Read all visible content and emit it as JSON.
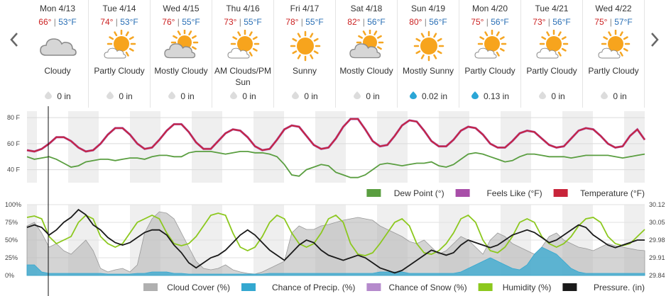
{
  "days": [
    {
      "date": "Mon 4/13",
      "high": "66°",
      "low": "53°F",
      "condition": "Cloudy",
      "precip": "0 in",
      "icon": "cloud-icon",
      "drop": "gray"
    },
    {
      "date": "Tue 4/14",
      "high": "74°",
      "low": "53°F",
      "condition": "Partly Cloudy",
      "precip": "0 in",
      "icon": "partly-cloudy-icon",
      "drop": "gray"
    },
    {
      "date": "Wed 4/15",
      "high": "76°",
      "low": "55°F",
      "condition": "Mostly Cloudy",
      "precip": "0 in",
      "icon": "mostly-cloudy-icon",
      "drop": "gray"
    },
    {
      "date": "Thu 4/16",
      "high": "73°",
      "low": "55°F",
      "condition": "AM Clouds/PM Sun",
      "precip": "0 in",
      "icon": "partly-cloudy-icon",
      "drop": "gray"
    },
    {
      "date": "Fri 4/17",
      "high": "78°",
      "low": "55°F",
      "condition": "Sunny",
      "precip": "0 in",
      "icon": "sun-icon",
      "drop": "gray"
    },
    {
      "date": "Sat 4/18",
      "high": "82°",
      "low": "56°F",
      "condition": "Mostly Cloudy",
      "precip": "0 in",
      "icon": "mostly-cloudy-icon",
      "drop": "gray"
    },
    {
      "date": "Sun 4/19",
      "high": "80°",
      "low": "56°F",
      "condition": "Mostly Sunny",
      "precip": "0.02 in",
      "icon": "sun-icon",
      "drop": "blue"
    },
    {
      "date": "Mon 4/20",
      "high": "75°",
      "low": "56°F",
      "condition": "Partly Cloudy",
      "precip": "0.13 in",
      "icon": "partly-cloudy-icon",
      "drop": "blue"
    },
    {
      "date": "Tue 4/21",
      "high": "73°",
      "low": "56°F",
      "condition": "Partly Cloudy",
      "precip": "0 in",
      "icon": "partly-cloudy-icon",
      "drop": "gray"
    },
    {
      "date": "Wed 4/22",
      "high": "75°",
      "low": "57°F",
      "condition": "Partly Cloudy",
      "precip": "0 in",
      "icon": "partly-cloudy-icon",
      "drop": "gray"
    }
  ],
  "colors": {
    "temperature": "#c8243a",
    "feels_like": "#a84ea8",
    "dew_point": "#5a9e40",
    "cloud_cover": "#b0b0b0",
    "precip_chance": "#34a8d0",
    "snow_chance": "#b58acc",
    "humidity": "#8cc81e",
    "pressure": "#1a1a1a",
    "hi_temp": "#cc2222",
    "lo_temp": "#2a6fb5"
  },
  "chart_data": [
    {
      "type": "line",
      "y_ticks": [
        "80 F",
        "60 F",
        "40 F"
      ],
      "ylim": [
        30,
        85
      ],
      "legend_position": "bottom-right",
      "series": [
        {
          "name": "Dew Point (°)",
          "values": [
            50,
            48,
            49,
            50,
            48,
            45,
            42,
            43,
            46,
            47,
            48,
            48,
            47,
            48,
            49,
            49,
            48,
            50,
            51,
            51,
            50,
            50,
            53,
            54,
            54,
            54,
            53,
            52,
            53,
            54,
            54,
            53,
            53,
            52,
            50,
            44,
            36,
            35,
            40,
            42,
            44,
            43,
            38,
            36,
            34,
            34,
            36,
            40,
            44,
            45,
            44,
            43,
            44,
            45,
            45,
            46,
            43,
            42,
            44,
            48,
            52,
            53,
            52,
            50,
            48,
            46,
            47,
            50,
            52,
            52,
            51,
            50,
            50,
            50,
            49,
            50,
            51,
            51,
            51,
            51,
            50,
            49,
            50,
            51,
            52
          ]
        },
        {
          "name": "Feels Like (°F)",
          "values": [
            55,
            54,
            56,
            60,
            65,
            65,
            62,
            57,
            54,
            55,
            60,
            67,
            72,
            72,
            67,
            60,
            56,
            57,
            63,
            70,
            75,
            75,
            69,
            61,
            56,
            56,
            62,
            68,
            71,
            70,
            65,
            58,
            55,
            56,
            63,
            71,
            74,
            73,
            66,
            59,
            56,
            57,
            64,
            73,
            79,
            79,
            71,
            62,
            58,
            59,
            66,
            74,
            78,
            77,
            70,
            62,
            58,
            58,
            63,
            70,
            73,
            72,
            67,
            60,
            57,
            57,
            62,
            68,
            70,
            69,
            64,
            59,
            57,
            58,
            64,
            70,
            72,
            71,
            66,
            60,
            57,
            58,
            66,
            71,
            63
          ]
        },
        {
          "name": "Temperature (°F)",
          "values": [
            55,
            54,
            56,
            60,
            65,
            65,
            62,
            57,
            54,
            55,
            60,
            67,
            72,
            72,
            67,
            60,
            56,
            57,
            63,
            70,
            75,
            75,
            69,
            61,
            56,
            56,
            62,
            68,
            71,
            70,
            65,
            58,
            55,
            56,
            63,
            71,
            74,
            73,
            66,
            59,
            56,
            57,
            64,
            73,
            79,
            79,
            71,
            62,
            58,
            59,
            66,
            74,
            78,
            77,
            70,
            62,
            58,
            58,
            63,
            70,
            73,
            72,
            67,
            60,
            57,
            57,
            62,
            68,
            70,
            69,
            64,
            59,
            57,
            58,
            64,
            70,
            72,
            71,
            66,
            60,
            57,
            58,
            66,
            71,
            63
          ]
        }
      ]
    },
    {
      "type": "area",
      "y_ticks_left": [
        "100%",
        "75%",
        "50%",
        "25%",
        "0%"
      ],
      "y_ticks_right": [
        "30.12",
        "30.05",
        "29.98",
        "29.91",
        "29.84"
      ],
      "ylim": [
        0,
        100
      ],
      "ylim_right": [
        29.84,
        30.12
      ],
      "legend_position": "bottom-right",
      "series": [
        {
          "name": "Cloud Cover (%)",
          "values": [
            70,
            75,
            60,
            40,
            45,
            35,
            30,
            40,
            50,
            35,
            10,
            5,
            8,
            10,
            5,
            15,
            60,
            80,
            90,
            88,
            80,
            60,
            40,
            20,
            10,
            8,
            10,
            15,
            8,
            5,
            3,
            2,
            5,
            10,
            15,
            20,
            60,
            70,
            65,
            65,
            70,
            72,
            75,
            78,
            80,
            82,
            80,
            78,
            70,
            65,
            60,
            55,
            48,
            45,
            50,
            40,
            30,
            35,
            45,
            55,
            50,
            40,
            30,
            50,
            60,
            55,
            45,
            40,
            35,
            30,
            40,
            55,
            60,
            50,
            45,
            40,
            38,
            35,
            40,
            45,
            42,
            40,
            38,
            36,
            35
          ]
        },
        {
          "name": "Chance of Precip. (%)",
          "values": [
            15,
            15,
            5,
            3,
            3,
            3,
            3,
            3,
            3,
            3,
            3,
            2,
            2,
            2,
            2,
            3,
            3,
            5,
            5,
            5,
            3,
            3,
            2,
            2,
            2,
            2,
            2,
            2,
            2,
            2,
            2,
            2,
            2,
            3,
            3,
            3,
            3,
            3,
            3,
            3,
            3,
            3,
            3,
            3,
            3,
            3,
            3,
            3,
            5,
            5,
            5,
            5,
            3,
            3,
            3,
            3,
            3,
            3,
            3,
            5,
            10,
            15,
            20,
            25,
            20,
            15,
            10,
            8,
            15,
            30,
            40,
            35,
            30,
            20,
            10,
            5,
            3,
            3,
            3,
            3,
            3,
            3,
            3,
            3,
            3
          ]
        },
        {
          "name": "Chance of Snow (%)",
          "values": []
        },
        {
          "name": "Humidity (%)",
          "values": [
            82,
            84,
            80,
            55,
            45,
            50,
            55,
            75,
            85,
            80,
            55,
            45,
            40,
            45,
            60,
            75,
            80,
            85,
            80,
            60,
            45,
            42,
            45,
            55,
            70,
            85,
            88,
            85,
            60,
            40,
            35,
            40,
            55,
            75,
            85,
            80,
            60,
            45,
            40,
            45,
            60,
            80,
            85,
            75,
            45,
            30,
            28,
            32,
            45,
            60,
            75,
            80,
            70,
            45,
            32,
            30,
            35,
            45,
            60,
            80,
            85,
            75,
            50,
            35,
            32,
            40,
            55,
            75,
            80,
            75,
            55,
            45,
            40,
            45,
            55,
            70,
            80,
            82,
            75,
            55,
            45,
            42,
            45,
            55,
            65
          ]
        },
        {
          "name": "Pressure. (in)",
          "values": [
            30.03,
            30.04,
            30.03,
            30.0,
            30.02,
            30.05,
            30.07,
            30.1,
            30.08,
            30.04,
            30.02,
            29.99,
            29.97,
            29.96,
            29.97,
            29.99,
            30.01,
            30.02,
            30.02,
            30.0,
            29.96,
            29.93,
            29.89,
            29.87,
            29.89,
            29.91,
            29.92,
            29.94,
            29.97,
            30.0,
            30.02,
            30.0,
            29.97,
            29.94,
            29.92,
            29.9,
            29.93,
            29.96,
            29.98,
            29.97,
            29.94,
            29.92,
            29.91,
            29.9,
            29.91,
            29.92,
            29.91,
            29.89,
            29.87,
            29.86,
            29.85,
            29.86,
            29.88,
            29.9,
            29.92,
            29.94,
            29.93,
            29.92,
            29.93,
            29.96,
            29.98,
            29.97,
            29.96,
            29.95,
            29.96,
            29.98,
            30.0,
            30.01,
            30.02,
            30.01,
            29.99,
            29.97,
            29.98,
            30.0,
            30.02,
            30.04,
            30.03,
            30.0,
            29.98,
            29.96,
            29.95,
            29.96,
            29.97,
            29.98,
            29.98
          ]
        }
      ]
    }
  ]
}
